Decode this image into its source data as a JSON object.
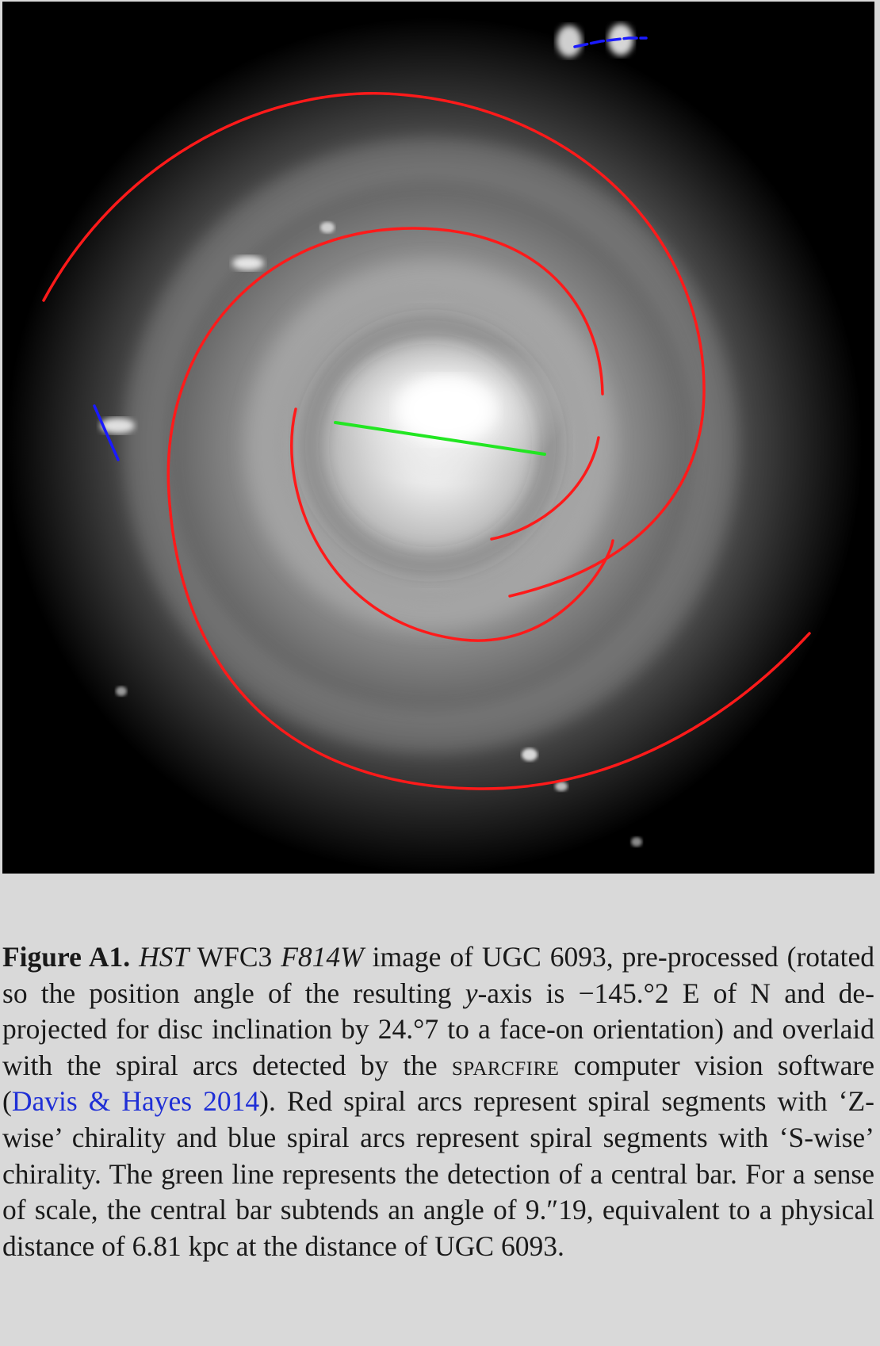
{
  "figure": {
    "image_description_color": {
      "background": "#000000",
      "spiral_z_wise": "#ff1a1a",
      "spiral_s_wise": "#1a1aff",
      "bar": "#22e622"
    }
  },
  "caption": {
    "label": "Figure A1.",
    "instrument": "HST",
    "camera": "WFC3",
    "filter": "F814W",
    "text_1": " image of UGC 6093, pre-processed (rotated so the position angle of the resulting ",
    "y_axis": "y",
    "text_2": "-axis is −145.°2 E of N and de-projected for disc inclination by 24.°7 to a face-on orientation) and overlaid with the spiral arcs detected by the ",
    "software": "sparcfire",
    "text_3": " computer vision software (",
    "citation": "Davis & Hayes 2014",
    "text_4": "). Red spiral arcs represent spiral segments with ‘Z-wise’ chirality and blue spiral arcs represent spiral segments with ‘S-wise’ chirality. The green line represents the detection of a central bar. For a sense of scale, the central bar subtends an angle of 9.″19, equivalent to a physical distance of 6.81 kpc at the distance of UGC 6093."
  }
}
